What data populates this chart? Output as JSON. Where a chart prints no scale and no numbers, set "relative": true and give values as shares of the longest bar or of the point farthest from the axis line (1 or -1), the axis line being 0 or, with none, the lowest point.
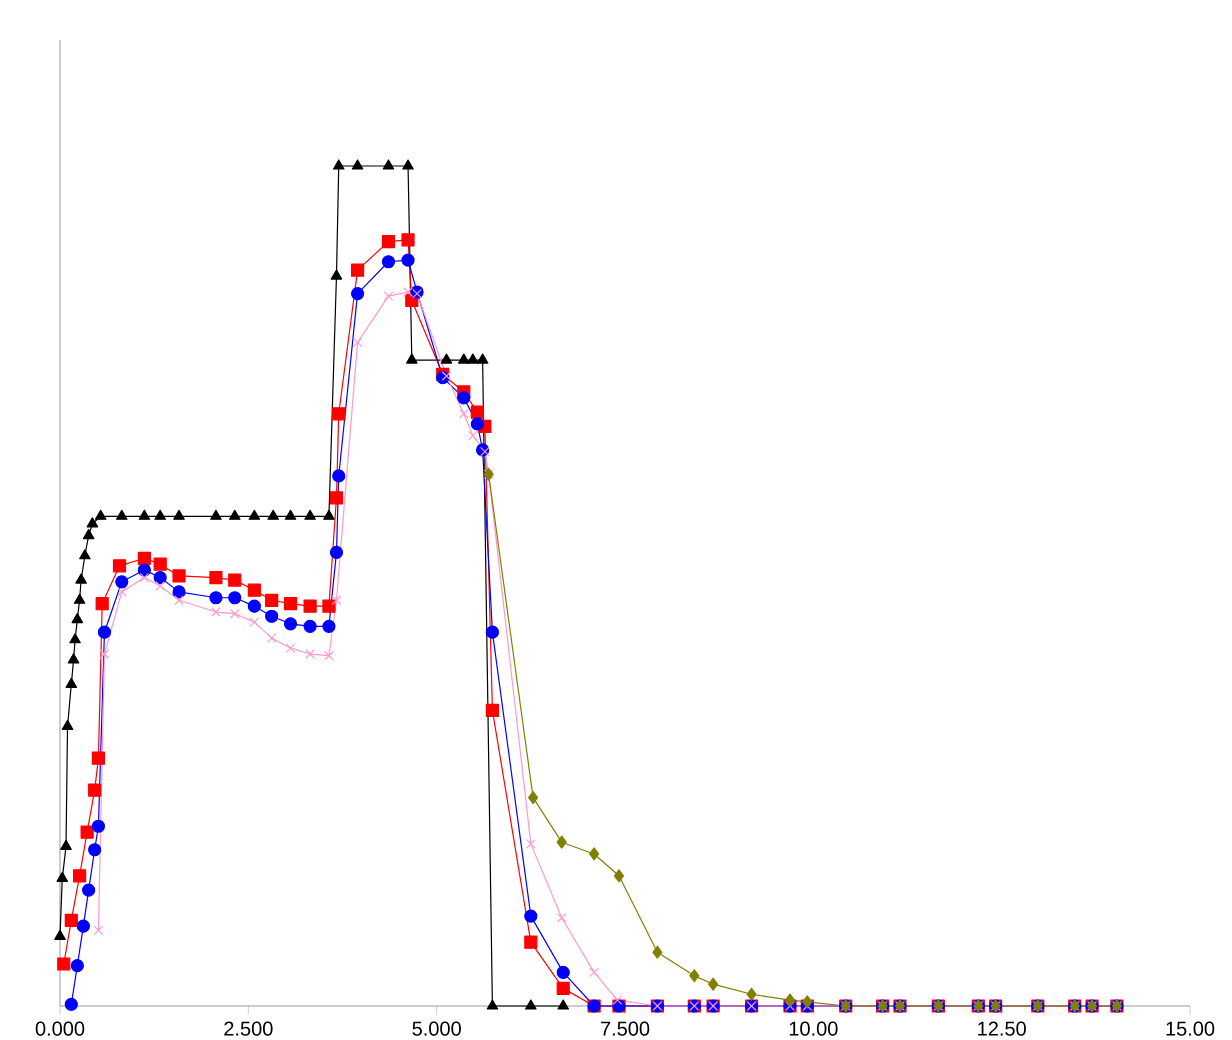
{
  "chart_data": {
    "type": "line",
    "relative": true,
    "grid": false,
    "xlim": [
      0,
      15
    ],
    "xticks": [
      {
        "value": 0,
        "label": "0.000"
      },
      {
        "value": 2.5,
        "label": "2.500"
      },
      {
        "value": 5,
        "label": "5.000"
      },
      {
        "value": 7.5,
        "label": "7.500"
      },
      {
        "value": 10,
        "label": "10.00"
      },
      {
        "value": 12.5,
        "label": "12.50"
      },
      {
        "value": 15,
        "label": "15.00"
      }
    ],
    "series": [
      {
        "color": "#000000",
        "marker": "triangle",
        "x": [
          0.0,
          0.03,
          0.08,
          0.1,
          0.15,
          0.18,
          0.2,
          0.23,
          0.26,
          0.28,
          0.33,
          0.38,
          0.43,
          0.54,
          0.82,
          1.12,
          1.33,
          1.58,
          2.07,
          2.32,
          2.58,
          2.83,
          3.06,
          3.32,
          3.57,
          3.67,
          3.7,
          3.95,
          4.36,
          4.62,
          4.67,
          5.13,
          5.36,
          5.48,
          5.61,
          5.74,
          6.25,
          6.68
        ],
        "values": [
          0.083,
          0.152,
          0.19,
          0.333,
          0.383,
          0.412,
          0.436,
          0.46,
          0.483,
          0.507,
          0.536,
          0.56,
          0.574,
          0.583,
          0.583,
          0.583,
          0.583,
          0.583,
          0.583,
          0.583,
          0.583,
          0.583,
          0.583,
          0.583,
          0.583,
          0.869,
          1,
          1,
          1,
          1,
          0.769,
          0.769,
          0.769,
          0.769,
          0.769,
          0,
          0,
          0
        ]
      },
      {
        "color": "#ff0000",
        "marker": "square",
        "x": [
          0.05,
          0.15,
          0.26,
          0.36,
          0.46,
          0.51,
          0.56,
          0.79,
          1.12,
          1.33,
          1.58,
          2.07,
          2.32,
          2.58,
          2.81,
          3.06,
          3.32,
          3.57,
          3.67,
          3.7,
          3.95,
          4.36,
          4.62,
          4.67,
          5.08,
          5.36,
          5.54,
          5.64,
          5.74,
          6.25,
          6.68,
          7.09,
          7.42,
          7.93,
          8.42,
          8.67,
          9.18,
          9.69,
          9.92,
          10.43,
          10.92,
          11.15,
          11.66,
          12.19,
          12.42,
          12.98,
          13.47,
          13.7,
          14.03
        ],
        "values": [
          0.05,
          0.102,
          0.155,
          0.207,
          0.257,
          0.295,
          0.479,
          0.524,
          0.533,
          0.526,
          0.512,
          0.51,
          0.507,
          0.495,
          0.483,
          0.479,
          0.476,
          0.476,
          0.605,
          0.705,
          0.876,
          0.91,
          0.912,
          0.84,
          0.752,
          0.731,
          0.707,
          0.69,
          0.352,
          0.076,
          0.021,
          0,
          0,
          0,
          0,
          0,
          0,
          0,
          0,
          0,
          0,
          0,
          0,
          0,
          0,
          0,
          0,
          0,
          0
        ]
      },
      {
        "color": "#0000ff",
        "marker": "circle",
        "x": [
          0.15,
          0.23,
          0.31,
          0.38,
          0.46,
          0.51,
          0.59,
          0.82,
          1.12,
          1.33,
          1.58,
          2.07,
          2.32,
          2.58,
          2.81,
          3.06,
          3.32,
          3.57,
          3.67,
          3.7,
          3.95,
          4.36,
          4.62,
          4.74,
          5.08,
          5.36,
          5.54,
          5.61,
          5.74,
          6.25,
          6.68,
          7.09,
          7.42,
          7.93,
          8.42,
          8.67,
          9.18,
          9.69,
          9.92,
          10.43,
          10.92,
          11.15,
          11.66,
          12.19,
          12.42,
          12.98,
          13.47,
          13.7,
          14.03
        ],
        "values": [
          0.002,
          0.048,
          0.095,
          0.138,
          0.186,
          0.214,
          0.445,
          0.505,
          0.519,
          0.51,
          0.493,
          0.486,
          0.486,
          0.476,
          0.464,
          0.455,
          0.452,
          0.452,
          0.54,
          0.631,
          0.848,
          0.886,
          0.888,
          0.85,
          0.748,
          0.724,
          0.693,
          0.662,
          0.445,
          0.107,
          0.04,
          0,
          0,
          0,
          0,
          0,
          0,
          0,
          0,
          0,
          0,
          0,
          0,
          0,
          0,
          0,
          0,
          0,
          0
        ]
      },
      {
        "color": "#ff99cc",
        "marker": "cross",
        "x": [
          0.51,
          0.59,
          0.82,
          1.12,
          1.33,
          1.58,
          2.07,
          2.32,
          2.58,
          2.81,
          3.06,
          3.32,
          3.57,
          3.67,
          3.95,
          4.36,
          4.62,
          4.74,
          5.13,
          5.36,
          5.48,
          5.64,
          5.69,
          6.25,
          6.66,
          7.09,
          7.4,
          7.93,
          8.42,
          8.67,
          9.18,
          9.69,
          9.92,
          10.43,
          10.92,
          11.15,
          11.66,
          12.19,
          12.42,
          12.98,
          13.47,
          13.7,
          14.03
        ],
        "values": [
          0.09,
          0.419,
          0.493,
          0.51,
          0.5,
          0.483,
          0.469,
          0.467,
          0.457,
          0.438,
          0.426,
          0.419,
          0.417,
          0.483,
          0.79,
          0.845,
          0.85,
          0.848,
          0.75,
          0.705,
          0.679,
          0.66,
          0.633,
          0.193,
          0.105,
          0.04,
          0.007,
          0,
          0,
          0,
          0,
          0,
          0,
          0,
          0,
          0,
          0,
          0,
          0,
          0,
          0,
          0,
          0
        ]
      },
      {
        "color": "#808000",
        "marker": "diamond",
        "x": [
          5.69,
          6.28,
          6.66,
          7.09,
          7.42,
          7.93,
          8.42,
          8.67,
          9.18,
          9.69,
          9.92,
          10.43,
          10.92,
          11.15,
          11.66,
          12.19,
          12.42,
          12.98,
          13.47,
          13.7,
          14.03
        ],
        "values": [
          0.633,
          0.248,
          0.195,
          0.181,
          0.155,
          0.064,
          0.036,
          0.026,
          0.014,
          0.007,
          0.005,
          0,
          0,
          0,
          0,
          0,
          0,
          0,
          0,
          0,
          0
        ]
      }
    ]
  }
}
